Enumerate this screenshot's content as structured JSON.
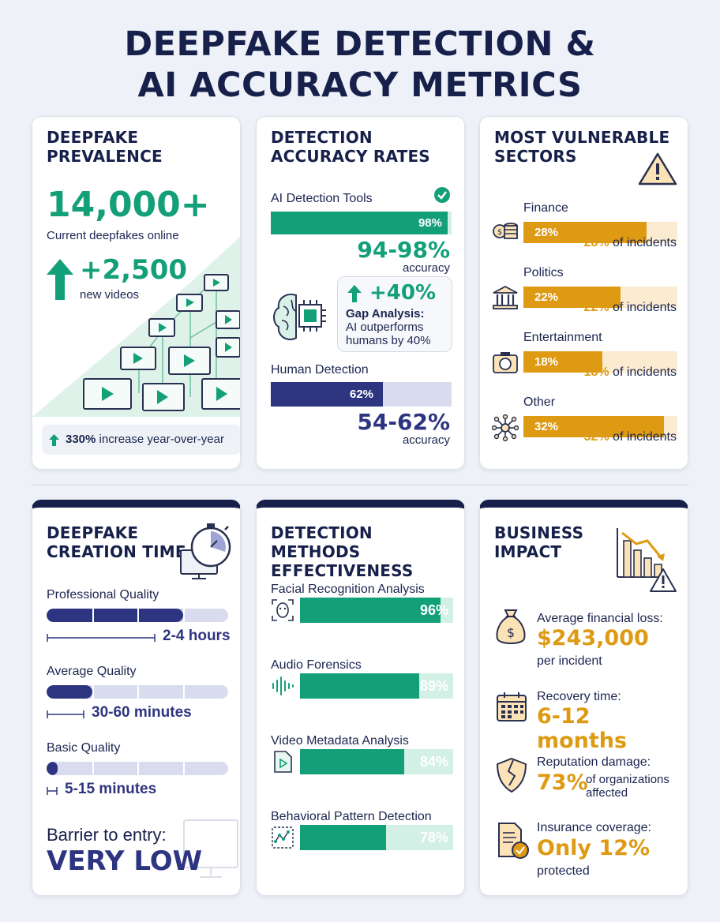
{
  "page": {
    "title_line1": "DEEPFAKE DETECTION &",
    "title_line2": "AI ACCURACY METRICS"
  },
  "prevalence": {
    "heading": "DEEPFAKE\nPREVALENCE",
    "count": "14,000+",
    "count_label": "Current deepfakes online",
    "new": "+2,500",
    "new_label": "new videos",
    "growth_value": "330%",
    "growth_label": " increase year-over-year"
  },
  "accuracy": {
    "heading": "DETECTION\nACCURACY RATES",
    "ai_label": "AI Detection Tools",
    "ai_bar_label": "98%",
    "ai_bar_value": 98,
    "ai_range": "94-98%",
    "ai_range_label": "accuracy",
    "gap_value": "+40%",
    "gap_title": "Gap Analysis:",
    "gap_text": "AI outperforms\nhumans by 40%",
    "human_label": "Human Detection",
    "human_bar_label": "62%",
    "human_bar_value": 62,
    "human_range": "54-62%",
    "human_range_label": "accuracy"
  },
  "sectors": {
    "heading": "MOST VULNERABLE\nSECTORS",
    "items": [
      {
        "name": "Finance",
        "value": "28%",
        "pct": 28,
        "note_value": "28%",
        "note_text": " of incidents",
        "icon": "coins-icon"
      },
      {
        "name": "Politics",
        "value": "22%",
        "pct": 22,
        "note_value": "22%",
        "note_text": " of incidents",
        "icon": "government-building-icon"
      },
      {
        "name": "Entertainment",
        "value": "18%",
        "pct": 18,
        "note_value": "18%",
        "note_text": " of incidents",
        "icon": "camera-icon"
      },
      {
        "name": "Other",
        "value": "32%",
        "pct": 32,
        "note_value": "32%",
        "note_text": " of incidents",
        "icon": "network-icon"
      }
    ]
  },
  "creation": {
    "heading": "DEEPFAKE\nCREATION TIME",
    "items": [
      {
        "name": "Professional Quality",
        "time": "2-4 hours",
        "fill": 0.75
      },
      {
        "name": "Average Quality",
        "time": "30-60 minutes",
        "fill": 0.25
      },
      {
        "name": "Basic Quality",
        "time": "5-15 minutes",
        "fill": 0.06
      }
    ],
    "barrier_label": "Barrier to entry:",
    "barrier_value": "VERY LOW"
  },
  "methods": {
    "heading": "DETECTION METHODS\nEFFECTIVENESS",
    "items": [
      {
        "name": "Facial Recognition Analysis",
        "value": "96%",
        "pct": 96,
        "icon": "face-scan-icon"
      },
      {
        "name": "Audio Forensics",
        "value": "89%",
        "pct": 89,
        "icon": "sound-wave-icon"
      },
      {
        "name": "Video Metadata Analysis",
        "value": "84%",
        "pct": 84,
        "icon": "video-file-icon"
      },
      {
        "name": "Behavioral Pattern Detection",
        "value": "78%",
        "pct": 78,
        "icon": "pattern-icon"
      }
    ]
  },
  "business": {
    "heading": "BUSINESS\nIMPACT",
    "loss_label": "Average financial loss:",
    "loss_value": "$243,000",
    "loss_sub": "per incident",
    "recovery_label": "Recovery time:",
    "recovery_value": "6-12 months",
    "reputation_label": "Reputation damage:",
    "reputation_value": "73%",
    "reputation_sub": "of organizations\naffected",
    "insurance_label": "Insurance coverage:",
    "insurance_value": "Only 12%",
    "insurance_sub": "protected"
  },
  "colors": {
    "navy": "#16204a",
    "green": "#13a079",
    "indigo": "#2e3580",
    "orange": "#de9a12"
  }
}
